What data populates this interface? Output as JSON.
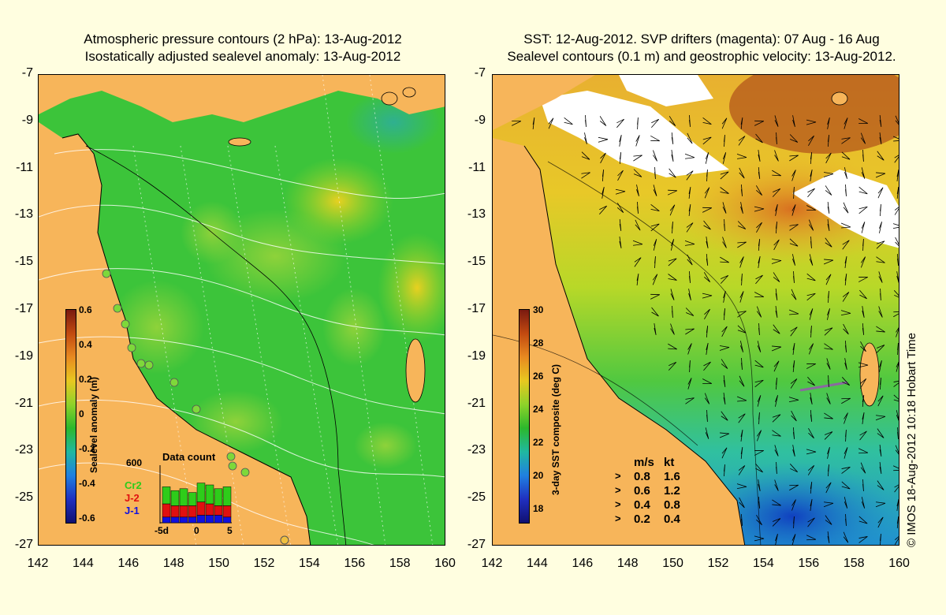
{
  "left_panel": {
    "title_line1": "Atmospheric pressure contours (2 hPa): 13-Aug-2012",
    "title_line2": "Isostatically adjusted sealevel anomaly: 13-Aug-2012",
    "colorbar_title": "Sealevel anomaly (m)",
    "colorbar_ticks": [
      "0.6",
      "0.4",
      "0.2",
      "0",
      "-0.2",
      "-0.4",
      "-0.6"
    ],
    "data_count": {
      "title": "Data count",
      "ymax_label": "600",
      "legend": [
        {
          "label": "Cr2",
          "color": "#2ecc1a"
        },
        {
          "label": "J-2",
          "color": "#e01010"
        },
        {
          "label": "J-1",
          "color": "#1010e0"
        }
      ],
      "x_ticks": [
        "-5d",
        "0",
        "5"
      ]
    }
  },
  "right_panel": {
    "title_line1": "SST: 12-Aug-2012. SVP drifters (magenta): 07 Aug - 16 Aug",
    "title_line2": "Sealevel contours (0.1 m) and geostrophic velocity: 13-Aug-2012.",
    "colorbar_title": "3-day SST composite (deg C)",
    "colorbar_ticks": [
      "30",
      "28",
      "26",
      "24",
      "22",
      "20",
      "18"
    ],
    "velocity_legend": {
      "header_ms": "m/s",
      "header_kt": "kt",
      "rows": [
        {
          "ms": "0.8",
          "kt": "1.6"
        },
        {
          "ms": "0.6",
          "kt": "1.2"
        },
        {
          "ms": "0.4",
          "kt": "0.8"
        },
        {
          "ms": "0.2",
          "kt": "0.4"
        }
      ]
    }
  },
  "axes": {
    "y_ticks": [
      "-7",
      "-9",
      "-11",
      "-13",
      "-15",
      "-17",
      "-19",
      "-21",
      "-23",
      "-25",
      "-27"
    ],
    "x_ticks": [
      "142",
      "144",
      "146",
      "148",
      "150",
      "152",
      "154",
      "156",
      "158",
      "160"
    ]
  },
  "stamp": "© IMOS 18-Aug-2012 10:18 Hobart Time",
  "colors": {
    "land": "#f7b55a",
    "background": "#fffee0",
    "sla_green": "#33c433",
    "sst_orange": "#e88a2a"
  }
}
